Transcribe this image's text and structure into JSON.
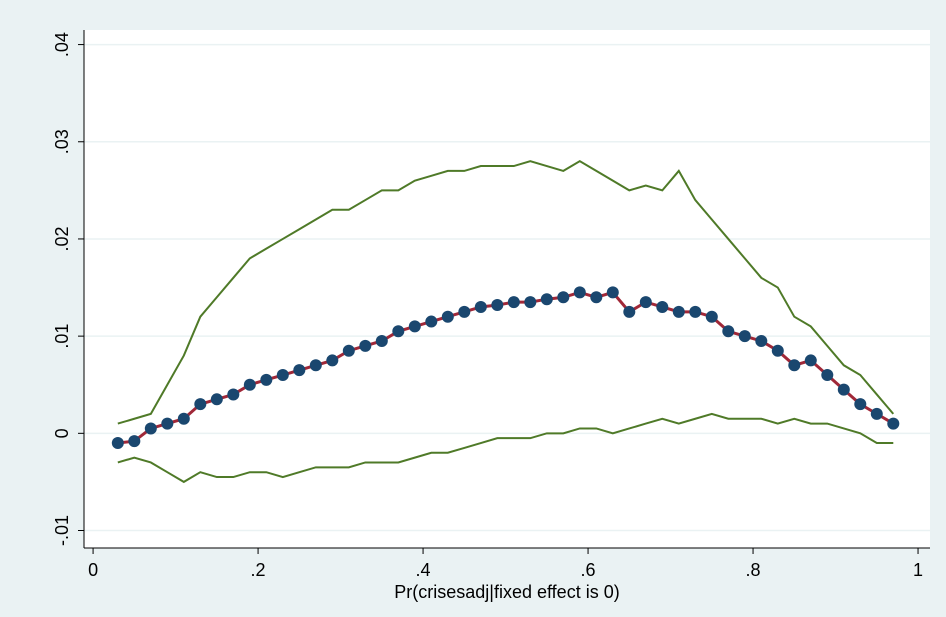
{
  "chart_data": {
    "type": "line",
    "x_label": "Pr(crisesadj|fixed effect is 0)",
    "x": [
      0.03,
      0.05,
      0.07,
      0.09,
      0.11,
      0.13,
      0.15,
      0.17,
      0.19,
      0.21,
      0.23,
      0.25,
      0.27,
      0.29,
      0.31,
      0.33,
      0.35,
      0.37,
      0.39,
      0.41,
      0.43,
      0.45,
      0.47,
      0.49,
      0.51,
      0.53,
      0.55,
      0.57,
      0.59,
      0.61,
      0.63,
      0.65,
      0.67,
      0.69,
      0.71,
      0.73,
      0.75,
      0.77,
      0.79,
      0.81,
      0.83,
      0.85,
      0.87,
      0.89,
      0.91,
      0.93,
      0.95,
      0.97
    ],
    "series": [
      {
        "color": "#4f7a28",
        "marker": false,
        "values": [
          0.001,
          0.0015,
          0.002,
          0.005,
          0.008,
          0.012,
          0.014,
          0.016,
          0.018,
          0.019,
          0.02,
          0.021,
          0.022,
          0.023,
          0.023,
          0.024,
          0.025,
          0.025,
          0.026,
          0.0265,
          0.027,
          0.027,
          0.0275,
          0.0275,
          0.0275,
          0.028,
          0.0275,
          0.027,
          0.028,
          0.027,
          0.026,
          0.025,
          0.0255,
          0.025,
          0.027,
          0.024,
          0.022,
          0.02,
          0.018,
          0.016,
          0.015,
          0.012,
          0.011,
          0.009,
          0.007,
          0.006,
          0.004,
          0.002
        ]
      },
      {
        "color": "#4f7a28",
        "marker": false,
        "values": [
          -0.003,
          -0.0025,
          -0.003,
          -0.004,
          -0.005,
          -0.004,
          -0.0045,
          -0.0045,
          -0.004,
          -0.004,
          -0.0045,
          -0.004,
          -0.0035,
          -0.0035,
          -0.0035,
          -0.003,
          -0.003,
          -0.003,
          -0.0025,
          -0.002,
          -0.002,
          -0.0015,
          -0.001,
          -0.0005,
          -0.0005,
          -0.0005,
          0,
          0,
          0.0005,
          0.0005,
          0,
          0.0005,
          0.001,
          0.0015,
          0.001,
          0.0015,
          0.002,
          0.0015,
          0.0015,
          0.0015,
          0.001,
          0.0015,
          0.001,
          0.001,
          0.0005,
          0,
          -0.001,
          -0.001
        ]
      },
      {
        "color": "#a02838",
        "marker": true,
        "marker_color": "#1a476f",
        "values": [
          -0.001,
          -0.0008,
          0.0005,
          0.001,
          0.0015,
          0.003,
          0.0035,
          0.004,
          0.005,
          0.0055,
          0.006,
          0.0065,
          0.007,
          0.0075,
          0.0085,
          0.009,
          0.0095,
          0.0105,
          0.011,
          0.0115,
          0.012,
          0.0125,
          0.013,
          0.0132,
          0.0135,
          0.0135,
          0.0138,
          0.014,
          0.0145,
          0.014,
          0.0145,
          0.0125,
          0.0135,
          0.013,
          0.0125,
          0.0125,
          0.012,
          0.0105,
          0.01,
          0.0095,
          0.0085,
          0.007,
          0.0075,
          0.006,
          0.0045,
          0.003,
          0.002,
          0.001
        ]
      }
    ],
    "xlim": [
      -0.011,
      1.0145
    ],
    "ylim": [
      -0.0118,
      0.0415
    ],
    "xticks": [
      0,
      {
        "value": 0.2,
        "label": ".2"
      },
      {
        "value": 0.4,
        "label": ".4"
      },
      {
        "value": 0.6,
        "label": ".6"
      },
      {
        "value": 0.8,
        "label": ".8"
      },
      1
    ],
    "yticks": [
      {
        "value": -0.01,
        "label": "-.01"
      },
      0,
      {
        "value": 0.01,
        "label": ".01"
      },
      {
        "value": 0.02,
        "label": ".02"
      },
      {
        "value": 0.03,
        "label": ".03"
      },
      {
        "value": 0.04,
        "label": ".04"
      }
    ],
    "grid": true
  }
}
